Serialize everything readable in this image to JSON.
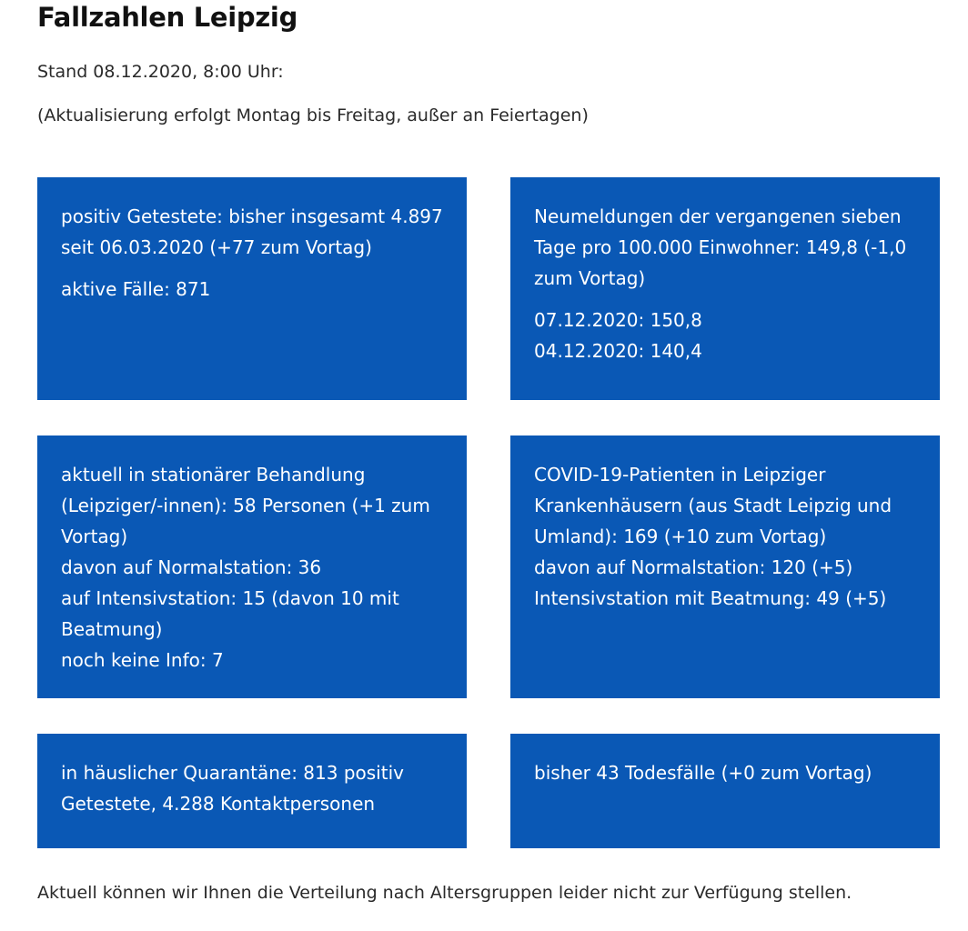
{
  "page": {
    "title": "Fallzahlen Leipzig",
    "stand": "Stand 08.12.2020, 8:00 Uhr:",
    "update_note": "(Aktualisierung erfolgt Montag bis Freitag, außer an Feiertagen)",
    "footer_note": "Aktuell können wir Ihnen die Verteilung nach Altersgruppen leider nicht zur Verfügung stellen."
  },
  "tiles": {
    "positive": {
      "line1": "positiv Getestete: bisher insgesamt 4.897 seit 06.03.2020 (+77 zum Vortag)",
      "line2": "aktive Fälle: 871"
    },
    "incidence": {
      "line1": "Neumeldungen der vergangenen sieben Tage pro 100.000 Einwohner: 149,8 (-1,0 zum Vortag)",
      "line2": "07.12.2020: 150,8",
      "line3": "04.12.2020: 140,4"
    },
    "hospital": {
      "line1": "aktuell in stationärer Behandlung (Leipziger/-innen): 58 Personen (+1 zum Vortag)",
      "line2": "davon auf Normalstation: 36",
      "line3": "auf Intensivstation: 15 (davon 10 mit Beatmung)",
      "line4": "noch keine Info: 7"
    },
    "covid_patients": {
      "line1": "COVID-19-Patienten in Leipziger Krankenhäusern (aus Stadt Leipzig und Umland): 169 (+10 zum Vortag)",
      "line2": "davon auf Normalstation: 120 (+5)",
      "line3": "Intensivstation mit Beatmung: 49 (+5)"
    },
    "quarantine": {
      "line1": "in häuslicher Quarantäne: 813 positiv Getestete, 4.288 Kontaktpersonen"
    },
    "deaths": {
      "line1": "bisher 43 Todesfälle (+0 zum Vortag)"
    }
  },
  "colors": {
    "tile_background": "#0a58b5",
    "tile_text": "#ffffff",
    "body_text": "#2a2a2a"
  }
}
